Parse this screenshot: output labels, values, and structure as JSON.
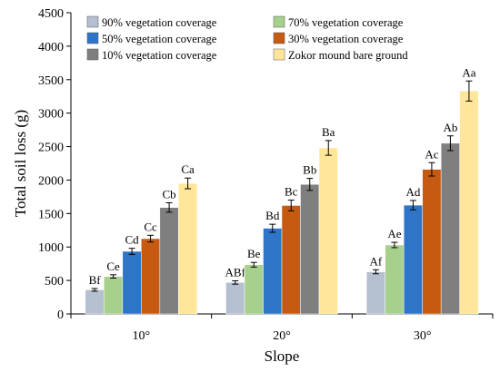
{
  "chart_data": {
    "type": "bar",
    "title": "",
    "xlabel": "Slope",
    "ylabel": "Total soil loss (g)",
    "ylim": [
      0,
      4500
    ],
    "yticks": [
      0,
      500,
      1000,
      1500,
      2000,
      2500,
      3000,
      3500,
      4000,
      4500
    ],
    "grid": false,
    "legend_position": "top-left",
    "categories": [
      "10°",
      "20°",
      "30°"
    ],
    "series": [
      {
        "name": "90% vegetation coverage",
        "color": "#b4bfd0",
        "values": [
          360,
          470,
          630
        ],
        "errors": [
          20,
          25,
          30
        ],
        "labels": [
          "Bf",
          "ABf",
          "Af"
        ]
      },
      {
        "name": "70% vegetation coverage",
        "color": "#a8d08d",
        "values": [
          560,
          735,
          1030
        ],
        "errors": [
          25,
          35,
          40
        ],
        "labels": [
          "Ce",
          "Be",
          "Ae"
        ]
      },
      {
        "name": "50% vegetation coverage",
        "color": "#2e75c7",
        "values": [
          935,
          1280,
          1625
        ],
        "errors": [
          45,
          60,
          70
        ],
        "labels": [
          "Cd",
          "Bd",
          "Ad"
        ]
      },
      {
        "name": "30% vegetation coverage",
        "color": "#c65a11",
        "values": [
          1125,
          1620,
          2160
        ],
        "errors": [
          50,
          80,
          100
        ],
        "labels": [
          "Cc",
          "Bc",
          "Ac"
        ]
      },
      {
        "name": "10% vegetation coverage",
        "color": "#7f7f7f",
        "values": [
          1590,
          1935,
          2550
        ],
        "errors": [
          70,
          90,
          110
        ],
        "labels": [
          "Cb",
          "Bb",
          "Ab"
        ]
      },
      {
        "name": "Zokor mound bare ground",
        "color": "#ffe699",
        "values": [
          1950,
          2480,
          3330
        ],
        "errors": [
          80,
          110,
          150
        ],
        "labels": [
          "Ca",
          "Ba",
          "Aa"
        ]
      }
    ]
  }
}
